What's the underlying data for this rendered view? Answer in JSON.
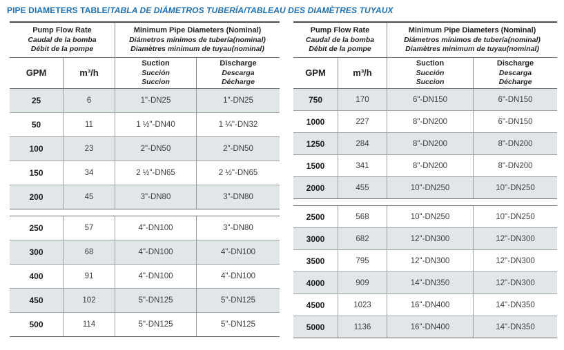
{
  "title": {
    "main": "PIPE DIAMETERS TABLE/",
    "italic": "TABLA DE DIÁMETROS TUBERÍA/TABLEAU DES DIAMÈTRES TUYAUX"
  },
  "colors": {
    "title_blue": "#1d70b4",
    "row_shade": "#e1e6e9",
    "header_text": "#231f20",
    "border_dark": "#4b4d4f",
    "border_light": "#9aa0a4"
  },
  "header": {
    "flow_group": [
      "Pump Flow Rate",
      "Caudal de la bomba",
      "Débit de la pompe"
    ],
    "diameter_group": [
      "Minimum Pipe Diameters (Nominal)",
      "Diámetros mínimos de tubería(nominal)",
      "Diamètres minimum de tuyau(nominal)"
    ],
    "gpm": "GPM",
    "m3h": "m³/h",
    "suction": [
      "Suction",
      "Succión",
      "Succion"
    ],
    "discharge": [
      "Discharge",
      "Descarga",
      "Décharge"
    ]
  },
  "tables": {
    "left": {
      "groups": [
        {
          "rows": [
            {
              "gpm": "25",
              "m3h": "6",
              "suction": "1\"-DN25",
              "discharge": "1\"-DN25",
              "shaded": true
            },
            {
              "gpm": "50",
              "m3h": "11",
              "suction": "1 ½\"-DN40",
              "discharge": "1 ¼\"-DN32",
              "shaded": false
            },
            {
              "gpm": "100",
              "m3h": "23",
              "suction": "2\"-DN50",
              "discharge": "2\"-DN50",
              "shaded": true
            },
            {
              "gpm": "150",
              "m3h": "34",
              "suction": "2 ½\"-DN65",
              "discharge": "2 ½\"-DN65",
              "shaded": false
            },
            {
              "gpm": "200",
              "m3h": "45",
              "suction": "3\"-DN80",
              "discharge": "3\"-DN80",
              "shaded": true
            }
          ]
        },
        {
          "rows": [
            {
              "gpm": "250",
              "m3h": "57",
              "suction": "4\"-DN100",
              "discharge": "3\"-DN80",
              "shaded": false
            },
            {
              "gpm": "300",
              "m3h": "68",
              "suction": "4\"-DN100",
              "discharge": "4\"-DN100",
              "shaded": true
            },
            {
              "gpm": "400",
              "m3h": "91",
              "suction": "4\"-DN100",
              "discharge": "4\"-DN100",
              "shaded": false
            },
            {
              "gpm": "450",
              "m3h": "102",
              "suction": "5\"-DN125",
              "discharge": "5\"-DN125",
              "shaded": true
            },
            {
              "gpm": "500",
              "m3h": "114",
              "suction": "5\"-DN125",
              "discharge": "5\"-DN125",
              "shaded": false
            }
          ]
        }
      ]
    },
    "right": {
      "groups": [
        {
          "rows": [
            {
              "gpm": "750",
              "m3h": "170",
              "suction": "6\"-DN150",
              "discharge": "6\"-DN150",
              "shaded": true
            },
            {
              "gpm": "1000",
              "m3h": "227",
              "suction": "8\"-DN200",
              "discharge": "6\"-DN150",
              "shaded": false
            },
            {
              "gpm": "1250",
              "m3h": "284",
              "suction": "8\"-DN200",
              "discharge": "8\"-DN200",
              "shaded": true
            },
            {
              "gpm": "1500",
              "m3h": "341",
              "suction": "8\"-DN200",
              "discharge": "8\"-DN200",
              "shaded": false
            },
            {
              "gpm": "2000",
              "m3h": "455",
              "suction": "10\"-DN250",
              "discharge": "10\"-DN250",
              "shaded": true
            }
          ]
        },
        {
          "rows": [
            {
              "gpm": "2500",
              "m3h": "568",
              "suction": "10\"-DN250",
              "discharge": "10\"-DN250",
              "shaded": false
            },
            {
              "gpm": "3000",
              "m3h": "682",
              "suction": "12\"-DN300",
              "discharge": "12\"-DN300",
              "shaded": true
            },
            {
              "gpm": "3500",
              "m3h": "795",
              "suction": "12\"-DN300",
              "discharge": "12\"-DN300",
              "shaded": false
            },
            {
              "gpm": "4000",
              "m3h": "909",
              "suction": "14\"-DN350",
              "discharge": "12\"-DN300",
              "shaded": true
            },
            {
              "gpm": "4500",
              "m3h": "1023",
              "suction": "16\"-DN400",
              "discharge": "14\"-DN350",
              "shaded": false
            },
            {
              "gpm": "5000",
              "m3h": "1136",
              "suction": "16\"-DN400",
              "discharge": "14\"-DN350",
              "shaded": true
            }
          ]
        }
      ]
    }
  }
}
